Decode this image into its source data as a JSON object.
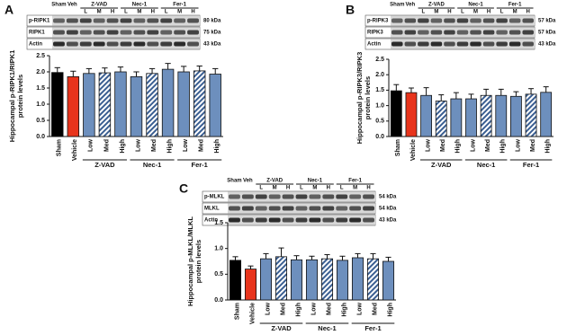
{
  "panels": [
    {
      "letter": "A",
      "blot": {
        "header": [
          "Sham",
          "Veh"
        ],
        "groups": [
          "Z-VAD",
          "Nec-1",
          "Fer-1"
        ],
        "doses": [
          "L",
          "M",
          "H"
        ],
        "rows": [
          {
            "name": "p-RIPK1",
            "kda": "80 kDa"
          },
          {
            "name": "RIPK1",
            "kda": "75 kDa"
          },
          {
            "name": "Actin",
            "kda": "43 kDa"
          }
        ]
      }
    },
    {
      "letter": "B",
      "blot": {
        "header": [
          "Sham",
          "Veh"
        ],
        "groups": [
          "Z-VAD",
          "Nec-1",
          "Fer-1"
        ],
        "doses": [
          "L",
          "M",
          "H"
        ],
        "rows": [
          {
            "name": "p-RIPK3",
            "kda": "57 kDa"
          },
          {
            "name": "RIPK3",
            "kda": "57 kDa"
          },
          {
            "name": "Actin",
            "kda": "43 kDa"
          }
        ]
      }
    },
    {
      "letter": "C",
      "blot": {
        "header": [
          "Sham",
          "Veh"
        ],
        "groups": [
          "Z-VAD",
          "Nec-1",
          "Fer-1"
        ],
        "doses": [
          "L",
          "M",
          "H"
        ],
        "rows": [
          {
            "name": "p-MLKL",
            "kda": "54 kDa"
          },
          {
            "name": "MLKL",
            "kda": "54 kDa"
          },
          {
            "name": "Actin",
            "kda": "43 kDa"
          }
        ]
      }
    }
  ],
  "chart_data": [
    {
      "type": "bar",
      "y_label": [
        "Hippocampal p-RIPK1/RIPK1",
        "protein levels"
      ],
      "categories": [
        "Sham",
        "Vehicle",
        "Low",
        "Med",
        "High",
        "Low",
        "Med",
        "High",
        "Low",
        "Med",
        "High"
      ],
      "group_labels": [
        "Z-VAD",
        "Nec-1",
        "Fer-1"
      ],
      "values": [
        1.98,
        1.85,
        1.95,
        1.97,
        2.0,
        1.85,
        1.95,
        2.08,
        2.0,
        2.03,
        1.93
      ],
      "errors": [
        0.15,
        0.17,
        0.15,
        0.15,
        0.15,
        0.15,
        0.15,
        0.18,
        0.17,
        0.15,
        0.17
      ],
      "colors": [
        "#000000",
        "#e8341c",
        "#6d8fbd",
        "#6d8fbd",
        "#6d8fbd",
        "#6d8fbd",
        "#6d8fbd",
        "#6d8fbd",
        "#6d8fbd",
        "#6d8fbd",
        "#6d8fbd"
      ],
      "hatched": [
        false,
        false,
        false,
        true,
        false,
        false,
        true,
        false,
        false,
        true,
        false
      ],
      "ylim": [
        0,
        2.5
      ],
      "yticks": [
        {
          "value": 0,
          "label": "0.0"
        },
        0.5,
        {
          "value": 1,
          "label": "1.0"
        },
        1.5,
        {
          "value": 2,
          "label": "2.0"
        },
        2.5
      ]
    },
    {
      "type": "bar",
      "y_label": [
        "Hippocampal p-RIPK3/RIPK3",
        "protein levels"
      ],
      "categories": [
        "Sham",
        "Vehicle",
        "Low",
        "Med",
        "High",
        "Low",
        "Med",
        "High",
        "Low",
        "Med",
        "High"
      ],
      "group_labels": [
        "Z-VAD",
        "Nec-1",
        "Fer-1"
      ],
      "values": [
        1.48,
        1.42,
        1.33,
        1.15,
        1.22,
        1.22,
        1.33,
        1.33,
        1.3,
        1.37,
        1.43
      ],
      "errors": [
        0.2,
        0.15,
        0.25,
        0.2,
        0.2,
        0.15,
        0.2,
        0.2,
        0.15,
        0.18,
        0.18
      ],
      "colors": [
        "#000000",
        "#e8341c",
        "#6d8fbd",
        "#6d8fbd",
        "#6d8fbd",
        "#6d8fbd",
        "#6d8fbd",
        "#6d8fbd",
        "#6d8fbd",
        "#6d8fbd",
        "#6d8fbd"
      ],
      "hatched": [
        false,
        false,
        false,
        true,
        false,
        false,
        true,
        false,
        false,
        true,
        false
      ],
      "ylim": [
        0,
        2.5
      ],
      "yticks": [
        {
          "value": 0,
          "label": "0.0"
        },
        0.5,
        {
          "value": 1,
          "label": "1.0"
        },
        1.5,
        {
          "value": 2,
          "label": "2.0"
        },
        2.5
      ]
    },
    {
      "type": "bar",
      "y_label": [
        "Hippocampal p-MLKL/MLKL",
        "protein levels"
      ],
      "categories": [
        "Sham",
        "Vehicle",
        "Low",
        "Med",
        "High",
        "Low",
        "Med",
        "High",
        "Low",
        "Med",
        "High"
      ],
      "group_labels": [
        "Z-VAD",
        "Nec-1",
        "Fer-1"
      ],
      "values": [
        0.77,
        0.6,
        0.8,
        0.84,
        0.78,
        0.78,
        0.8,
        0.77,
        0.82,
        0.8,
        0.75
      ],
      "errors": [
        0.07,
        0.06,
        0.1,
        0.17,
        0.08,
        0.07,
        0.08,
        0.08,
        0.08,
        0.1,
        0.08
      ],
      "colors": [
        "#000000",
        "#e8341c",
        "#6d8fbd",
        "#6d8fbd",
        "#6d8fbd",
        "#6d8fbd",
        "#6d8fbd",
        "#6d8fbd",
        "#6d8fbd",
        "#6d8fbd",
        "#6d8fbd"
      ],
      "hatched": [
        false,
        false,
        false,
        true,
        false,
        false,
        true,
        false,
        false,
        true,
        false
      ],
      "ylim": [
        0,
        1.5
      ],
      "yticks": [
        {
          "value": 0,
          "label": "0.0"
        },
        0.5,
        {
          "value": 1,
          "label": "1.0"
        },
        1.5
      ]
    }
  ]
}
